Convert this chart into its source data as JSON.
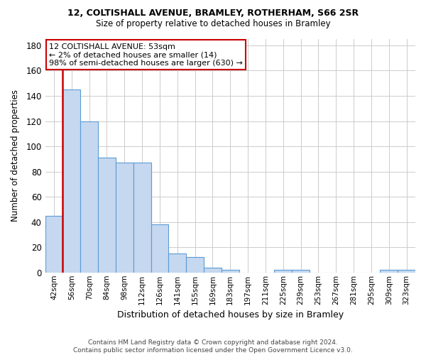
{
  "title_line1": "12, COLTISHALL AVENUE, BRAMLEY, ROTHERHAM, S66 2SR",
  "title_line2": "Size of property relative to detached houses in Bramley",
  "xlabel": "Distribution of detached houses by size in Bramley",
  "ylabel": "Number of detached properties",
  "categories": [
    "42sqm",
    "56sqm",
    "70sqm",
    "84sqm",
    "98sqm",
    "112sqm",
    "126sqm",
    "141sqm",
    "155sqm",
    "169sqm",
    "183sqm",
    "197sqm",
    "211sqm",
    "225sqm",
    "239sqm",
    "253sqm",
    "267sqm",
    "281sqm",
    "295sqm",
    "309sqm",
    "323sqm"
  ],
  "values": [
    45,
    145,
    120,
    91,
    87,
    87,
    38,
    15,
    12,
    4,
    2,
    0,
    0,
    2,
    2,
    0,
    0,
    0,
    0,
    2,
    2
  ],
  "bar_color": "#c5d8f0",
  "bar_edge_color": "#5b9bd5",
  "highlight_color": "#cc0000",
  "annotation_text": "12 COLTISHALL AVENUE: 53sqm\n← 2% of detached houses are smaller (14)\n98% of semi-detached houses are larger (630) →",
  "annotation_box_color": "#ffffff",
  "annotation_box_edge": "#cc0000",
  "ylim": [
    0,
    185
  ],
  "yticks": [
    0,
    20,
    40,
    60,
    80,
    100,
    120,
    140,
    160,
    180
  ],
  "footer_line1": "Contains HM Land Registry data © Crown copyright and database right 2024.",
  "footer_line2": "Contains public sector information licensed under the Open Government Licence v3.0.",
  "bg_color": "#ffffff",
  "grid_color": "#cccccc",
  "red_line_x": 0.5
}
